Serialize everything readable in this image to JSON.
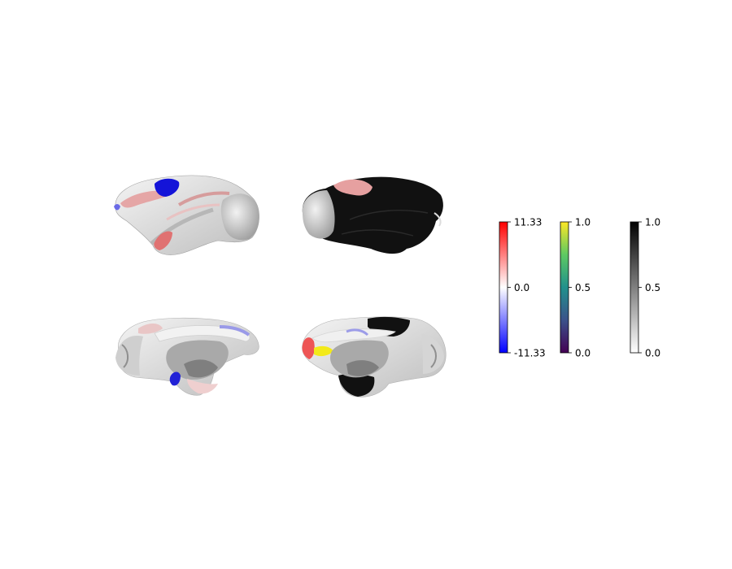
{
  "figure": {
    "panels": [
      {
        "name": "left-lateral",
        "view": "lateral",
        "hemisphere": "left"
      },
      {
        "name": "right-lateral",
        "view": "lateral",
        "hemisphere": "right"
      },
      {
        "name": "left-medial",
        "view": "medial",
        "hemisphere": "left"
      },
      {
        "name": "right-medial",
        "view": "medial",
        "hemisphere": "right"
      }
    ],
    "colorbars": [
      {
        "name": "diverging",
        "colormap": "bwr",
        "colors": [
          "#0000ff",
          "#ffffff",
          "#ff0000"
        ],
        "ticks": [
          "-11.33",
          "0.0",
          "11.33"
        ]
      },
      {
        "name": "viridis",
        "colormap": "viridis",
        "colors": [
          "#440154",
          "#3b528b",
          "#21918c",
          "#5ec962",
          "#fde725"
        ],
        "ticks": [
          "0.0",
          "0.5",
          "1.0"
        ]
      },
      {
        "name": "greyscale",
        "colormap": "binary",
        "colors": [
          "#ffffff",
          "#000000"
        ],
        "ticks": [
          "0.0",
          "0.5",
          "1.0"
        ]
      }
    ]
  }
}
